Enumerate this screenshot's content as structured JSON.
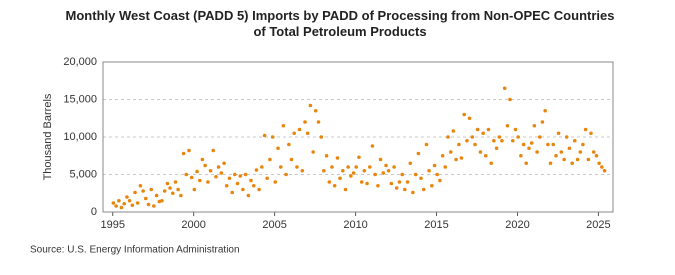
{
  "chart_data": {
    "type": "scatter",
    "title": "Monthly West Coast (PADD 5) Imports by PADD of Processing from Non-OPEC Countries of Total Petroleum Products",
    "y_label": "Thousand Barrels",
    "source": "Source: U.S. Energy Information Administration",
    "color": "#e8850c",
    "grid": true,
    "xlim": [
      1994.4,
      2025.9
    ],
    "xticks": [
      1995,
      2000,
      2005,
      2010,
      2015,
      2020,
      2025
    ],
    "ylim": [
      0,
      20000
    ],
    "yticks": [
      0,
      {
        "value": 5000,
        "label": "5,000"
      },
      {
        "value": 10000,
        "label": "10,000"
      },
      {
        "value": 15000,
        "label": "15,000"
      },
      {
        "value": 20000,
        "label": "20,000"
      }
    ],
    "x": [
      1995.04,
      1995.21,
      1995.38,
      1995.54,
      1995.71,
      1995.88,
      1996.04,
      1996.21,
      1996.38,
      1996.54,
      1996.71,
      1996.88,
      1997.04,
      1997.21,
      1997.38,
      1997.54,
      1997.71,
      1997.88,
      1998.04,
      1998.21,
      1998.38,
      1998.54,
      1998.71,
      1998.88,
      1999.04,
      1999.21,
      1999.38,
      1999.54,
      1999.71,
      1999.88,
      2000.04,
      2000.21,
      2000.38,
      2000.54,
      2000.71,
      2000.88,
      2001.04,
      2001.21,
      2001.38,
      2001.54,
      2001.71,
      2001.88,
      2002.04,
      2002.21,
      2002.38,
      2002.54,
      2002.71,
      2002.88,
      2003.04,
      2003.21,
      2003.38,
      2003.54,
      2003.71,
      2003.88,
      2004.04,
      2004.21,
      2004.38,
      2004.54,
      2004.71,
      2004.88,
      2005.04,
      2005.21,
      2005.38,
      2005.54,
      2005.71,
      2005.88,
      2006.04,
      2006.21,
      2006.38,
      2006.54,
      2006.71,
      2006.88,
      2007.04,
      2007.21,
      2007.38,
      2007.54,
      2007.71,
      2007.88,
      2008.04,
      2008.21,
      2008.38,
      2008.54,
      2008.71,
      2008.88,
      2009.04,
      2009.21,
      2009.38,
      2009.54,
      2009.71,
      2009.88,
      2010.04,
      2010.21,
      2010.38,
      2010.54,
      2010.71,
      2010.88,
      2011.04,
      2011.21,
      2011.38,
      2011.54,
      2011.71,
      2011.88,
      2012.04,
      2012.21,
      2012.38,
      2012.54,
      2012.71,
      2012.88,
      2013.04,
      2013.21,
      2013.38,
      2013.54,
      2013.71,
      2013.88,
      2014.04,
      2014.21,
      2014.38,
      2014.54,
      2014.71,
      2014.88,
      2015.04,
      2015.21,
      2015.38,
      2015.54,
      2015.71,
      2015.88,
      2016.04,
      2016.21,
      2016.38,
      2016.54,
      2016.71,
      2016.88,
      2017.04,
      2017.21,
      2017.38,
      2017.54,
      2017.71,
      2017.88,
      2018.04,
      2018.21,
      2018.38,
      2018.54,
      2018.71,
      2018.88,
      2019.04,
      2019.21,
      2019.38,
      2019.54,
      2019.71,
      2019.88,
      2020.04,
      2020.21,
      2020.38,
      2020.54,
      2020.71,
      2020.88,
      2021.04,
      2021.21,
      2021.38,
      2021.54,
      2021.71,
      2021.88,
      2022.04,
      2022.21,
      2022.38,
      2022.54,
      2022.71,
      2022.88,
      2023.04,
      2023.21,
      2023.38,
      2023.54,
      2023.71,
      2023.88,
      2024.04,
      2024.21,
      2024.38,
      2024.54,
      2024.71,
      2024.88,
      2025.04,
      2025.21,
      2025.38
    ],
    "values": [
      1200,
      800,
      1500,
      600,
      1100,
      2000,
      1500,
      900,
      2600,
      1200,
      3500,
      2800,
      1800,
      1000,
      3000,
      800,
      2200,
      1400,
      1500,
      2800,
      3800,
      3200,
      2500,
      4000,
      3000,
      2200,
      7800,
      5000,
      8200,
      4600,
      3000,
      5400,
      4200,
      7000,
      6200,
      4000,
      5500,
      8200,
      4700,
      6000,
      5200,
      6500,
      3500,
      4500,
      2600,
      5000,
      3800,
      4800,
      3000,
      5000,
      2200,
      4200,
      3500,
      5600,
      3000,
      6000,
      10200,
      4500,
      7000,
      10000,
      4000,
      8500,
      6000,
      11500,
      5000,
      9000,
      7000,
      10500,
      6000,
      11000,
      5500,
      12000,
      10500,
      14200,
      8000,
      13500,
      12000,
      10000,
      5500,
      7500,
      4000,
      6000,
      3500,
      7200,
      4500,
      5500,
      3000,
      6000,
      4800,
      5200,
      6000,
      7300,
      4000,
      5500,
      3800,
      6000,
      8800,
      5000,
      3500,
      7000,
      5200,
      6200,
      5500,
      3800,
      6000,
      3200,
      4000,
      5000,
      3000,
      4000,
      6500,
      2600,
      5000,
      7800,
      4500,
      3000,
      9000,
      5500,
      3500,
      6200,
      5000,
      4200,
      7500,
      6000,
      10000,
      8000,
      10800,
      7000,
      9000,
      7200,
      13000,
      9500,
      12500,
      10000,
      9000,
      11000,
      8000,
      10500,
      7500,
      11000,
      6500,
      9500,
      8500,
      10000,
      9500,
      16500,
      11500,
      15000,
      9500,
      11000,
      10000,
      7500,
      9000,
      6500,
      8500,
      9200,
      11500,
      8000,
      10000,
      12000,
      13500,
      9000,
      6500,
      9000,
      7500,
      10500,
      8000,
      7000,
      10000,
      8500,
      6500,
      9500,
      7000,
      8000,
      9000,
      11000,
      7000,
      10500,
      8000,
      7500,
      6500,
      6000,
      5500
    ]
  }
}
